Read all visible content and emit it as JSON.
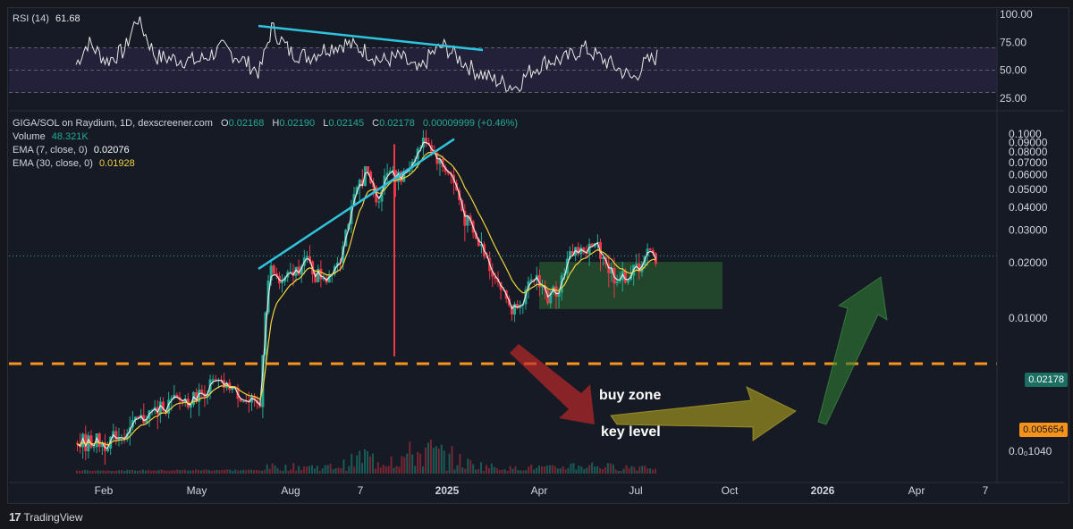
{
  "rsi": {
    "label": "RSI (14)",
    "value": "61.68",
    "ticks": [
      "100.00",
      "75.00",
      "50.00",
      "25.00"
    ]
  },
  "legend": {
    "pair": "GIGA/SOL on Raydium, 1D, dexscreener.com",
    "ohlc": [
      {
        "k": "O",
        "v": "0.02168"
      },
      {
        "k": "H",
        "v": "0.02190"
      },
      {
        "k": "L",
        "v": "0.02145"
      },
      {
        "k": "C",
        "v": "0.02178"
      }
    ],
    "change": "0.00009999 (+0.46%)",
    "volume_label": "Volume",
    "volume_value": "48.321K",
    "ema7_label": "EMA (7, close, 0)",
    "ema7_value": "0.02076",
    "ema30_label": "EMA (30, close, 0)",
    "ema30_value": "0.01928"
  },
  "price_tags": {
    "last": "0.02178",
    "key": "0.005654"
  },
  "annotations": {
    "buy_zone": "buy zone",
    "key_level": "key level"
  },
  "brand": "TradingView",
  "colors": {
    "up": "#22ab94",
    "down": "#f23645",
    "ema7": "#e8e8e8",
    "ema30": "#f2d33c",
    "trendline": "#2ec4de",
    "key_level": "#f7931a",
    "rsi_band": "#7e57c2"
  },
  "chart_data": {
    "type": "candlestick",
    "y_scale": "log",
    "y_ticks": [
      "0.1000",
      "0.09000",
      "0.08000",
      "0.07000",
      "0.06000",
      "0.05000",
      "0.04000",
      "0.03000",
      "0.02000",
      "0.01000",
      "0.0₀1040"
    ],
    "y_tick_values": [
      0.1,
      0.09,
      0.08,
      0.07,
      0.06,
      0.05,
      0.04,
      0.03,
      0.02,
      0.01,
      0.00104
    ],
    "x_ticks": [
      "Feb",
      "May",
      "Aug",
      "7",
      "2025",
      "Apr",
      "Jul",
      "Oct",
      "2026",
      "Apr",
      "7"
    ],
    "key_level": 0.005654,
    "buy_zone": [
      0.0112,
      0.0202
    ],
    "last_close": 0.02178,
    "price_path": [
      [
        0,
        0.0021
      ],
      [
        0.04,
        0.0021
      ],
      [
        0.08,
        0.0024
      ],
      [
        0.12,
        0.0031
      ],
      [
        0.16,
        0.0035
      ],
      [
        0.2,
        0.0038
      ],
      [
        0.22,
        0.0045
      ],
      [
        0.25,
        0.0042
      ],
      [
        0.28,
        0.0034
      ],
      [
        0.3,
        0.0033
      ],
      [
        0.315,
        0.019
      ],
      [
        0.33,
        0.0155
      ],
      [
        0.35,
        0.017
      ],
      [
        0.37,
        0.021
      ],
      [
        0.39,
        0.0172
      ],
      [
        0.41,
        0.017
      ],
      [
        0.43,
        0.022
      ],
      [
        0.45,
        0.04
      ],
      [
        0.47,
        0.065
      ],
      [
        0.49,
        0.042
      ],
      [
        0.51,
        0.068
      ],
      [
        0.53,
        0.055
      ],
      [
        0.55,
        0.075
      ],
      [
        0.57,
        0.095
      ],
      [
        0.59,
        0.07
      ],
      [
        0.61,
        0.06
      ],
      [
        0.63,
        0.037
      ],
      [
        0.65,
        0.027
      ],
      [
        0.67,
        0.021
      ],
      [
        0.69,
        0.015
      ],
      [
        0.71,
        0.011
      ],
      [
        0.73,
        0.013
      ],
      [
        0.75,
        0.017
      ],
      [
        0.77,
        0.0125
      ],
      [
        0.79,
        0.016
      ],
      [
        0.81,
        0.024
      ],
      [
        0.83,
        0.023
      ],
      [
        0.85,
        0.025
      ],
      [
        0.87,
        0.018
      ],
      [
        0.89,
        0.016
      ],
      [
        0.91,
        0.018
      ],
      [
        0.93,
        0.0218
      ]
    ],
    "rsi_path": [
      [
        0,
        55
      ],
      [
        0.02,
        75
      ],
      [
        0.05,
        58
      ],
      [
        0.08,
        68
      ],
      [
        0.1,
        98
      ],
      [
        0.13,
        62
      ],
      [
        0.16,
        60
      ],
      [
        0.2,
        58
      ],
      [
        0.24,
        70
      ],
      [
        0.27,
        60
      ],
      [
        0.3,
        48
      ],
      [
        0.32,
        88
      ],
      [
        0.35,
        66
      ],
      [
        0.38,
        62
      ],
      [
        0.41,
        70
      ],
      [
        0.44,
        74
      ],
      [
        0.47,
        68
      ],
      [
        0.5,
        58
      ],
      [
        0.53,
        62
      ],
      [
        0.56,
        48
      ],
      [
        0.58,
        64
      ],
      [
        0.6,
        72
      ],
      [
        0.62,
        63
      ],
      [
        0.65,
        50
      ],
      [
        0.68,
        42
      ],
      [
        0.7,
        38
      ],
      [
        0.72,
        35
      ],
      [
        0.74,
        48
      ],
      [
        0.77,
        58
      ],
      [
        0.8,
        60
      ],
      [
        0.83,
        70
      ],
      [
        0.86,
        60
      ],
      [
        0.89,
        50
      ],
      [
        0.91,
        42
      ],
      [
        0.93,
        56
      ],
      [
        0.95,
        62
      ]
    ]
  }
}
